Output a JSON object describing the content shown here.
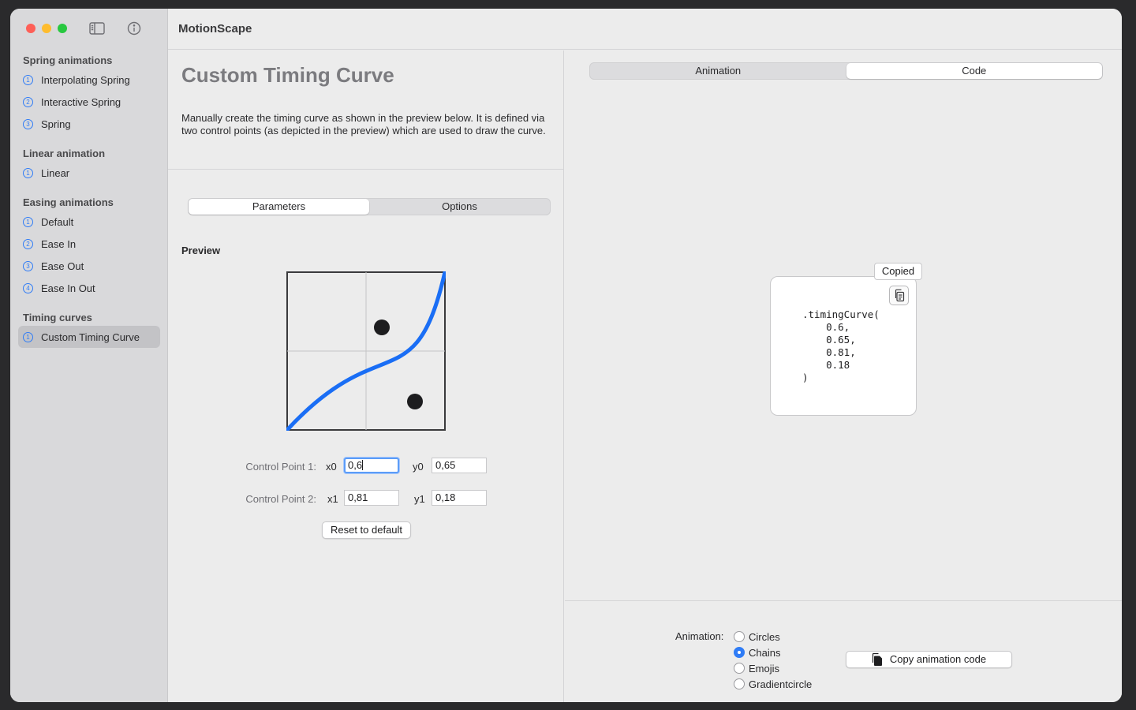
{
  "app": {
    "title": "MotionScape"
  },
  "sidebar": {
    "sections": [
      {
        "title": "Spring animations",
        "items": [
          {
            "num": "1",
            "label": "Interpolating Spring"
          },
          {
            "num": "2",
            "label": "Interactive Spring"
          },
          {
            "num": "3",
            "label": "Spring"
          }
        ]
      },
      {
        "title": "Linear animation",
        "items": [
          {
            "num": "1",
            "label": "Linear"
          }
        ]
      },
      {
        "title": "Easing animations",
        "items": [
          {
            "num": "1",
            "label": "Default"
          },
          {
            "num": "2",
            "label": "Ease In"
          },
          {
            "num": "3",
            "label": "Ease Out"
          },
          {
            "num": "4",
            "label": "Ease In Out"
          }
        ]
      },
      {
        "title": "Timing curves",
        "items": [
          {
            "num": "1",
            "label": "Custom Timing Curve",
            "selected": true
          }
        ]
      }
    ]
  },
  "main": {
    "title": "Custom Timing Curve",
    "description": "Manually create the timing curve as shown in the preview below. It is defined via two control points (as depicted in the preview) which are used to draw the curve.",
    "tabs": {
      "parameters": "Parameters",
      "options": "Options",
      "selected": "Parameters"
    },
    "preview_label": "Preview",
    "curve": {
      "x0": 0.6,
      "y0": 0.65,
      "x1": 0.81,
      "y1": 0.18,
      "color": "#1a6ef5"
    },
    "control_point_1": {
      "label": "Control Point 1:",
      "x_label": "x0",
      "x_value": "0,6",
      "y_label": "y0",
      "y_value": "0,65"
    },
    "control_point_2": {
      "label": "Control Point 2:",
      "x_label": "x1",
      "x_value": "0,81",
      "y_label": "y1",
      "y_value": "0,18"
    },
    "reset_label": "Reset to default"
  },
  "right": {
    "tabs": {
      "animation": "Animation",
      "code": "Code",
      "selected": "Code"
    },
    "code": ".timingCurve(\n    0.6,\n    0.65,\n    0.81,\n    0.18\n)",
    "copied_label": "Copied",
    "animation_label": "Animation:",
    "animation_options": [
      "Circles",
      "Chains",
      "Emojis",
      "Gradientcircle"
    ],
    "selected_animation": "Chains",
    "copy_button_label": "Copy animation code"
  },
  "colors": {
    "accent": "#2f7cf6",
    "close": "#fe5f57",
    "minimize": "#febc2e",
    "zoom": "#28c840"
  }
}
